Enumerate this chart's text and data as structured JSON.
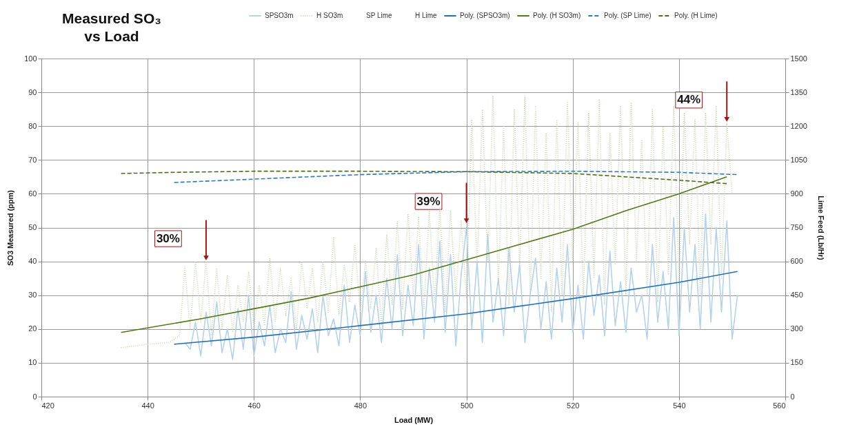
{
  "chart_data": {
    "type": "line",
    "title": "Measured SO₃\nvs Load",
    "xlabel": "Load (MW)",
    "ylabel": "SO3 Measured (ppm)",
    "y2label": "Lime Feed (Lb/Hr)",
    "xlim": [
      420,
      560
    ],
    "xticks": [
      420,
      440,
      460,
      480,
      500,
      520,
      540,
      560
    ],
    "ylim": [
      0,
      100
    ],
    "yticks": [
      0,
      10,
      20,
      30,
      40,
      50,
      60,
      70,
      80,
      90,
      100
    ],
    "y2lim": [
      0,
      1500
    ],
    "y2ticks": [
      0,
      150,
      300,
      450,
      600,
      750,
      900,
      1050,
      1200,
      1350,
      1500
    ],
    "grid": true,
    "legend": "top",
    "marker": "none",
    "annotations": [
      {
        "text": "30%",
        "x": 451,
        "y": 40
      },
      {
        "text": "39%",
        "x": 500,
        "y": 51
      },
      {
        "text": "44%",
        "x": 549,
        "y": 81
      }
    ],
    "series": [
      {
        "name": "SPSO3m",
        "color": "#b4d2ec",
        "line_style": "solid",
        "x": [
          447,
          448,
          449,
          450,
          451,
          452,
          453,
          454,
          455,
          456,
          457,
          458,
          459,
          460,
          461,
          462,
          463,
          464,
          465,
          466,
          467,
          468,
          469,
          470,
          471,
          472,
          473,
          474,
          475,
          476,
          477,
          478,
          479,
          480,
          481,
          482,
          483,
          484,
          485,
          486,
          487,
          488,
          489,
          490,
          491,
          492,
          493,
          494,
          495,
          496,
          497,
          498,
          499,
          500,
          501,
          502,
          503,
          504,
          505,
          506,
          507,
          508,
          509,
          510,
          511,
          512,
          513,
          514,
          515,
          516,
          517,
          518,
          519,
          520,
          521,
          522,
          523,
          524,
          525,
          526,
          527,
          528,
          529,
          530,
          531,
          532,
          533,
          534,
          535,
          536,
          537,
          538,
          539,
          540,
          541,
          542,
          543,
          544,
          545,
          546,
          547,
          548,
          549,
          550,
          551
        ],
        "values": [
          16,
          14,
          22,
          12,
          25,
          15,
          28,
          13,
          20,
          11,
          26,
          14,
          30,
          12,
          22,
          15,
          27,
          13,
          20,
          16,
          31,
          14,
          24,
          17,
          26,
          13,
          30,
          18,
          23,
          15,
          33,
          16,
          27,
          18,
          37,
          19,
          30,
          16,
          35,
          20,
          42,
          18,
          33,
          21,
          45,
          17,
          38,
          22,
          46,
          19,
          42,
          15,
          36,
          50,
          20,
          40,
          16,
          48,
          22,
          35,
          18,
          44,
          25,
          39,
          16,
          30,
          41,
          20,
          34,
          17,
          38,
          22,
          45,
          19,
          33,
          17,
          40,
          24,
          36,
          18,
          43,
          21,
          34,
          19,
          38,
          25,
          30,
          17,
          45,
          22,
          37,
          20,
          53,
          18,
          50,
          25,
          45,
          20,
          54,
          22,
          50,
          25,
          52,
          17,
          30
        ]
      },
      {
        "name": "H SO3m",
        "color": "#c6d5b0",
        "line_style": "dotted",
        "x": [
          435,
          440,
          444,
          446,
          447,
          448,
          449,
          450,
          451,
          452,
          453,
          454,
          455,
          456,
          457,
          458,
          459,
          460,
          461,
          462,
          463,
          464,
          465,
          466,
          467,
          468,
          469,
          470,
          471,
          472,
          473,
          474,
          475,
          476,
          477,
          478,
          479,
          480,
          481,
          482,
          483,
          484,
          485,
          486,
          487,
          488,
          489,
          490,
          491,
          492,
          493,
          494,
          495,
          496,
          497,
          498,
          499,
          500,
          501,
          502,
          503,
          504,
          505,
          506,
          507,
          508,
          509,
          510,
          511,
          512,
          513,
          514,
          515,
          516,
          517,
          518,
          519,
          520,
          521,
          522,
          523,
          524,
          525,
          526,
          527,
          528,
          529,
          530,
          531,
          532,
          533,
          534,
          535,
          536,
          537,
          538,
          539,
          540,
          541,
          542,
          543,
          544,
          545,
          546,
          547,
          548,
          549,
          550
        ],
        "values": [
          14.5,
          15.5,
          16,
          18,
          38,
          20,
          40,
          22,
          40,
          18,
          38,
          20,
          36,
          19,
          33,
          22,
          37,
          20,
          33,
          21,
          41,
          22,
          38,
          24,
          35,
          20,
          40,
          26,
          38,
          22,
          40,
          25,
          47,
          24,
          39,
          28,
          45,
          25,
          40,
          26,
          44,
          21,
          48,
          27,
          52,
          26,
          54,
          30,
          53,
          26,
          55,
          28,
          56,
          25,
          55,
          30,
          52,
          29,
          82,
          38,
          85,
          40,
          89,
          33,
          80,
          27,
          85,
          38,
          89,
          30,
          86,
          35,
          78,
          25,
          82,
          30,
          87,
          40,
          81,
          29,
          84,
          35,
          88,
          27,
          78,
          39,
          86,
          30,
          87,
          40,
          76,
          30,
          85,
          28,
          80,
          36,
          86,
          34,
          84,
          45,
          82,
          30,
          84,
          45,
          86,
          35,
          81,
          60
        ]
      },
      {
        "name": "SP Lime",
        "axis": "y2"
      },
      {
        "name": "H Lime",
        "axis": "y2"
      },
      {
        "name": "Poly. (SPSO3m)",
        "color": "#1f6fbf",
        "line_style": "solid",
        "x": [
          445,
          460,
          480,
          500,
          520,
          540,
          551
        ],
        "values": [
          15.5,
          17.6,
          21,
          24.5,
          29,
          33.8,
          37
        ]
      },
      {
        "name": "Poly. (H SO3m)",
        "color": "#4e7a10",
        "line_style": "solid",
        "x": [
          435,
          450,
          460,
          470,
          480,
          490,
          500,
          510,
          520,
          530,
          540,
          549
        ],
        "values": [
          19,
          23,
          26,
          29,
          32.5,
          36,
          40.5,
          45,
          49.5,
          55,
          60,
          65
        ]
      },
      {
        "name": "Poly. (SP Lime)",
        "color": "#2a7ad0",
        "line_style": "dashed",
        "axis": "y2",
        "x": [
          445,
          460,
          480,
          500,
          520,
          540,
          551
        ],
        "values": [
          950,
          965,
          985,
          998,
          1000,
          995,
          985
        ]
      },
      {
        "name": "Poly. (H Lime)",
        "color": "#4e6e18",
        "line_style": "dashed",
        "axis": "y2",
        "x": [
          435,
          445,
          460,
          480,
          500,
          520,
          540,
          549
        ],
        "values": [
          990,
          995,
          1000,
          1000,
          998,
          990,
          960,
          945
        ]
      }
    ]
  }
}
